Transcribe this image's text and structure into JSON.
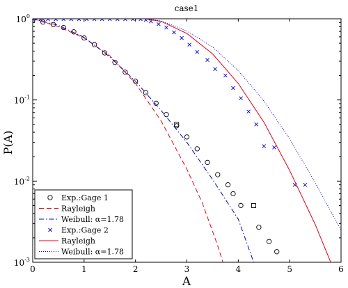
{
  "chart_data": {
    "type": "scatter",
    "title": "case1",
    "xlabel": "A",
    "ylabel": "P(A)",
    "xlim": [
      0,
      6
    ],
    "ylim": [
      0.001,
      1
    ],
    "yscale": "log",
    "x_ticks": [
      0,
      1,
      2,
      3,
      4,
      5,
      6
    ],
    "x_tick_labels": [
      "0",
      "1",
      "2",
      "3",
      "4",
      "5",
      "6"
    ],
    "y_ticks": [
      1,
      0.1,
      0.01,
      0.001
    ],
    "y_tick_labels": [
      {
        "base": "10",
        "exp": "0"
      },
      {
        "base": "10",
        "exp": "-1"
      },
      {
        "base": "10",
        "exp": "-2"
      },
      {
        "base": "10",
        "exp": "-3"
      }
    ],
    "grid": false,
    "legend_position": "bottom-left",
    "series": [
      {
        "name": "Exp.:Gage 1",
        "style": "markers",
        "markers": [
          {
            "shape": "circle",
            "x": [
              0.0,
              0.2,
              0.4,
              0.6,
              0.8,
              1.0,
              1.2,
              1.4,
              1.6,
              1.8,
              2.0,
              2.2,
              2.4,
              2.6,
              2.8,
              3.0,
              3.2,
              3.4,
              3.6,
              3.8,
              4.4,
              4.6,
              4.75
            ],
            "y": [
              0.96,
              0.91,
              0.85,
              0.78,
              0.69,
              0.58,
              0.48,
              0.38,
              0.29,
              0.22,
              0.17,
              0.123,
              0.091,
              0.066,
              0.048,
              0.035,
              0.025,
              0.017,
              0.012,
              0.009,
              0.0027,
              0.0018,
              0.00135
            ]
          },
          {
            "shape": "square",
            "x": [
              2.8,
              4.3
            ],
            "y": [
              0.05,
              0.005
            ]
          },
          {
            "shape": "circle",
            "x": [
              3.9,
              4.05
            ],
            "y": [
              0.007,
              0.005
            ]
          }
        ],
        "color": "#000000"
      },
      {
        "name": "Rayleigh",
        "style": "dashed",
        "color": "#e2001a",
        "x": [
          0,
          0.5,
          1.0,
          1.5,
          2.0,
          2.5,
          3.0,
          3.3,
          3.6,
          3.7
        ],
        "y": [
          1.0,
          0.8,
          0.58,
          0.35,
          0.16,
          0.055,
          0.014,
          0.0054,
          0.0016,
          0.001
        ]
      },
      {
        "name": "Weibull: α=1.78",
        "style": "dashdot",
        "color": "#0000cc",
        "x": [
          0,
          0.5,
          1.0,
          1.5,
          2.0,
          2.5,
          3.0,
          3.5,
          4.0,
          4.3
        ],
        "y": [
          1.0,
          0.83,
          0.59,
          0.34,
          0.17,
          0.074,
          0.03,
          0.0105,
          0.0034,
          0.001
        ]
      },
      {
        "name": "Exp.:Gage 2",
        "style": "markers",
        "color": "#0000cc",
        "markers": [
          {
            "shape": "x",
            "x": [
              0.0,
              0.15,
              0.3,
              0.45,
              0.6,
              0.75,
              0.9,
              1.05,
              1.2,
              1.35,
              1.5,
              1.65,
              1.8,
              1.95,
              2.1,
              2.2,
              2.3,
              2.45,
              2.6,
              2.75,
              2.9,
              3.05,
              3.2,
              3.4,
              3.55,
              3.75,
              3.9,
              4.05,
              4.2,
              4.35,
              4.5,
              4.7,
              5.1,
              5.3
            ],
            "y": [
              0.99,
              0.99,
              0.99,
              0.99,
              0.99,
              0.99,
              0.99,
              0.99,
              0.99,
              0.99,
              0.99,
              0.99,
              0.99,
              0.99,
              0.99,
              0.97,
              0.93,
              0.86,
              0.78,
              0.68,
              0.58,
              0.48,
              0.39,
              0.31,
              0.24,
              0.2,
              0.14,
              0.105,
              0.072,
              0.05,
              0.027,
              0.026,
              0.009,
              0.009
            ]
          }
        ]
      },
      {
        "name": "Rayleigh",
        "style": "solid",
        "color": "#e2001a",
        "x": [
          2.18,
          2.5,
          3.0,
          3.5,
          4.0,
          4.5,
          5.0,
          5.5,
          5.8
        ],
        "y": [
          1.0,
          0.93,
          0.66,
          0.37,
          0.16,
          0.053,
          0.0135,
          0.0029,
          0.001
        ]
      },
      {
        "name": "Weibull: α=1.78",
        "style": "dotted",
        "color": "#0000cc",
        "x": [
          2.18,
          2.5,
          3.0,
          3.5,
          4.0,
          4.5,
          5.0,
          5.5,
          6.0
        ],
        "y": [
          1.0,
          0.94,
          0.71,
          0.45,
          0.23,
          0.097,
          0.033,
          0.0095,
          0.0025
        ]
      }
    ]
  }
}
